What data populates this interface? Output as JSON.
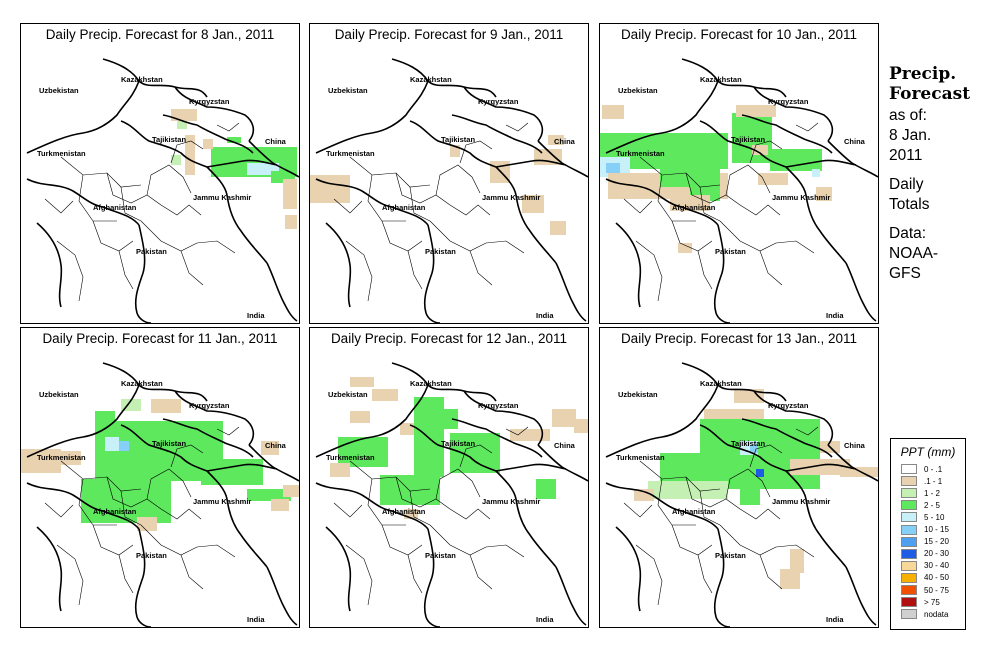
{
  "panels": [
    {
      "title": "Daily Precip. Forecast for  8 Jan., 2011"
    },
    {
      "title": "Daily Precip. Forecast for  9 Jan., 2011"
    },
    {
      "title": "Daily Precip. Forecast for  10 Jan., 2011"
    },
    {
      "title": "Daily Precip. Forecast for  11 Jan., 2011"
    },
    {
      "title": "Daily Precip. Forecast for  12 Jan., 2011"
    },
    {
      "title": "Daily Precip. Forecast for  13 Jan., 2011"
    }
  ],
  "map_labels": {
    "uzbekistan": "Uzbekistan",
    "kazakhstan": "Kazakhstan",
    "kyrgyzstan": "Kyrgyzstan",
    "tajikistan": "Tajikistan",
    "turkmenistan": "Turkmenistan",
    "china": "China",
    "afghanistan": "Afghanistan",
    "jammu_kashmir": "Jammu Kashmir",
    "pakistan": "Pakistan",
    "india": "India"
  },
  "side": {
    "heading_line1": "Precip.",
    "heading_line2": "Forecast",
    "asof_line1": "as of:",
    "asof_line2": "8 Jan.",
    "asof_line3": "2011",
    "totals_line1": "Daily",
    "totals_line2": "Totals",
    "data_line1": "Data:",
    "data_line2": "NOAA-",
    "data_line3": "GFS"
  },
  "legend": {
    "title": "PPT (mm)",
    "items": [
      {
        "label": "0 - .1",
        "color": "#ffffff"
      },
      {
        "label": ".1 - 1",
        "color": "#e8d2b0"
      },
      {
        "label": "1 - 2",
        "color": "#c4f0b4"
      },
      {
        "label": "2 - 5",
        "color": "#5ee85e"
      },
      {
        "label": "5 - 10",
        "color": "#c8f0f8"
      },
      {
        "label": "10 - 15",
        "color": "#86d0f8"
      },
      {
        "label": "15 - 20",
        "color": "#4ea0f0"
      },
      {
        "label": "20 - 30",
        "color": "#1f5ce6"
      },
      {
        "label": "30 - 40",
        "color": "#f8d898"
      },
      {
        "label": "40 - 50",
        "color": "#f8b000"
      },
      {
        "label": "50 - 75",
        "color": "#f05000"
      },
      {
        "label": "> 75",
        "color": "#b01010"
      },
      {
        "label": "nodata",
        "color": "#d0d0d0"
      }
    ]
  }
}
